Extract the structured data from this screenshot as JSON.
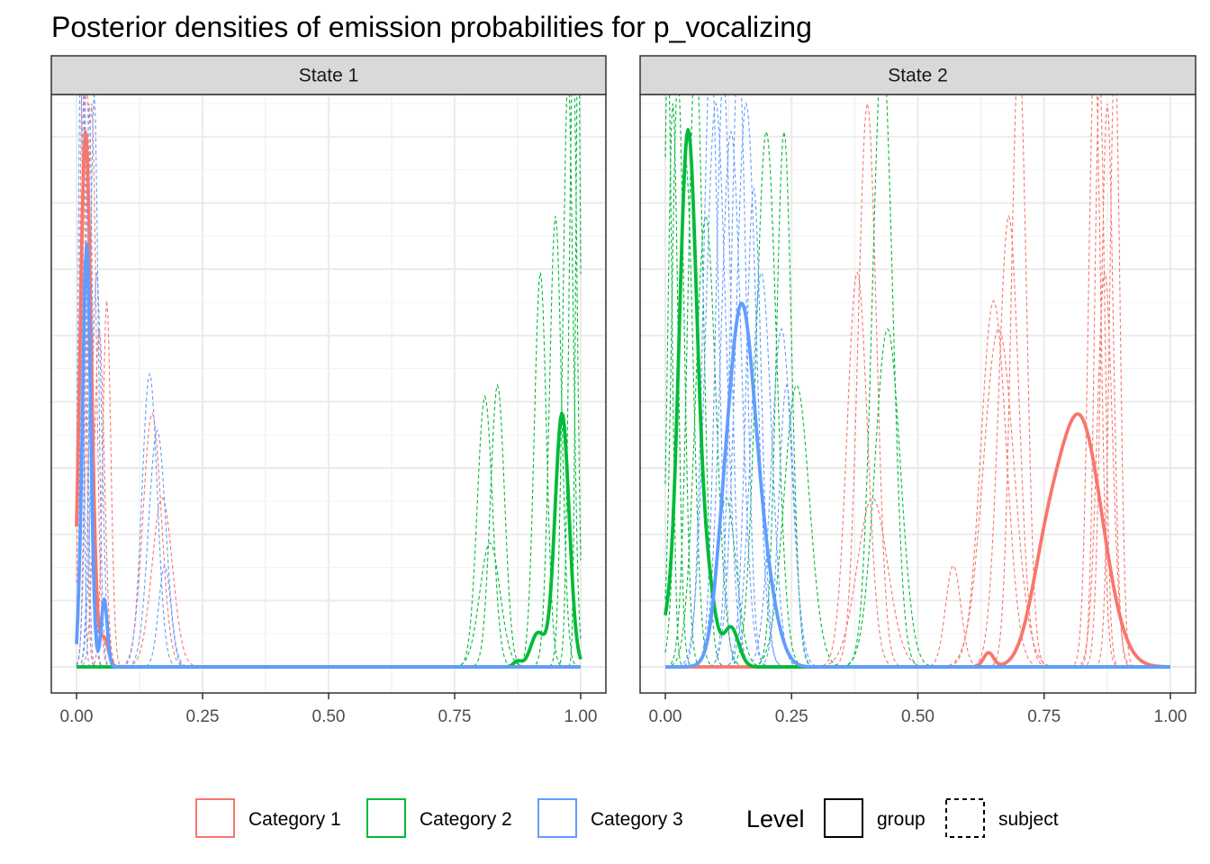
{
  "chart_data": {
    "type": "line",
    "title": "Posterior densities of emission probabilities for p_vocalizing",
    "xlabel": "",
    "ylabel": "",
    "x_ticks": [
      "0.00",
      "0.25",
      "0.50",
      "0.75",
      "1.00"
    ],
    "xlim": [
      0,
      1
    ],
    "grid": true,
    "legend_position": "bottom",
    "legend": {
      "categories": [
        {
          "label": "Category 1",
          "color": "#F8766D"
        },
        {
          "label": "Category 2",
          "color": "#00BA38"
        },
        {
          "label": "Category 3",
          "color": "#619CFF"
        }
      ],
      "level_title": "Level",
      "levels": [
        {
          "label": "group",
          "linetype": "solid"
        },
        {
          "label": "subject",
          "linetype": "dashed"
        }
      ]
    },
    "panels": [
      {
        "strip": "State 1",
        "ylim": [
          0,
          1
        ],
        "group_curves": [
          {
            "category": "Category 1",
            "color": "#F8766D",
            "peaks": [
              {
                "mu": 0.018,
                "sd": 0.011,
                "h": 0.95
              }
            ],
            "tail": [
              {
                "mu": 0.055,
                "sd": 0.008,
                "h": 0.05
              }
            ]
          },
          {
            "category": "Category 2",
            "color": "#00BA38",
            "peaks": [
              {
                "mu": 0.963,
                "sd": 0.014,
                "h": 0.45
              }
            ],
            "tail": [
              {
                "mu": 0.915,
                "sd": 0.014,
                "h": 0.06
              },
              {
                "mu": 0.875,
                "sd": 0.008,
                "h": 0.01
              }
            ]
          },
          {
            "category": "Category 3",
            "color": "#619CFF",
            "peaks": [
              {
                "mu": 0.02,
                "sd": 0.008,
                "h": 0.75
              }
            ],
            "tail": [
              {
                "mu": 0.055,
                "sd": 0.006,
                "h": 0.12
              },
              {
                "mu": 0.005,
                "sd": 0.003,
                "h": 0.03
              }
            ]
          }
        ],
        "subject_curves": [
          {
            "category": "Category 1",
            "color": "#F8766D",
            "peaks": [
              [
                0.012,
                0.006,
                1.1
              ],
              [
                0.02,
                0.008,
                1.05
              ],
              [
                0.03,
                0.009,
                1.0
              ],
              [
                0.045,
                0.01,
                0.6
              ],
              [
                0.06,
                0.008,
                0.65
              ],
              [
                0.15,
                0.018,
                0.45
              ],
              [
                0.17,
                0.02,
                0.3
              ]
            ]
          },
          {
            "category": "Category 2",
            "color": "#00BA38",
            "peaks": [
              [
                0.81,
                0.015,
                0.48
              ],
              [
                0.835,
                0.014,
                0.5
              ],
              [
                0.82,
                0.02,
                0.22
              ],
              [
                0.92,
                0.012,
                0.7
              ],
              [
                0.95,
                0.012,
                0.8
              ],
              [
                0.975,
                0.01,
                1.05
              ],
              [
                0.985,
                0.008,
                1.1
              ],
              [
                0.995,
                0.005,
                1.15
              ]
            ]
          },
          {
            "category": "Category 3",
            "color": "#619CFF",
            "peaks": [
              [
                0.008,
                0.005,
                1.1
              ],
              [
                0.015,
                0.006,
                1.05
              ],
              [
                0.025,
                0.007,
                1.0
              ],
              [
                0.035,
                0.008,
                1.02
              ],
              [
                0.04,
                0.01,
                0.7
              ],
              [
                0.145,
                0.015,
                0.52
              ],
              [
                0.16,
                0.017,
                0.42
              ],
              [
                0.175,
                0.012,
                0.18
              ]
            ]
          }
        ]
      },
      {
        "strip": "State 2",
        "ylim": [
          0,
          1
        ],
        "group_curves": [
          {
            "category": "Category 1",
            "color": "#F8766D",
            "peaks": [
              {
                "mu": 0.82,
                "sd": 0.045,
                "h": 0.44
              }
            ],
            "tail": [
              {
                "mu": 0.75,
                "sd": 0.03,
                "h": 0.12
              },
              {
                "mu": 0.64,
                "sd": 0.01,
                "h": 0.025
              }
            ]
          },
          {
            "category": "Category 2",
            "color": "#00BA38",
            "peaks": [
              {
                "mu": 0.045,
                "sd": 0.018,
                "h": 0.95
              }
            ],
            "tail": [
              {
                "mu": 0.085,
                "sd": 0.015,
                "h": 0.12
              },
              {
                "mu": 0.13,
                "sd": 0.015,
                "h": 0.07
              },
              {
                "mu": 0.0,
                "sd": 0.01,
                "h": 0.05
              }
            ]
          },
          {
            "category": "Category 3",
            "color": "#619CFF",
            "peaks": [
              {
                "mu": 0.15,
                "sd": 0.028,
                "h": 0.63
              }
            ],
            "tail": [
              {
                "mu": 0.2,
                "sd": 0.025,
                "h": 0.1
              },
              {
                "mu": 0.11,
                "sd": 0.015,
                "h": 0.05
              }
            ]
          }
        ],
        "subject_curves": [
          {
            "category": "Category 1",
            "color": "#F8766D",
            "peaks": [
              [
                0.4,
                0.018,
                1.0
              ],
              [
                0.38,
                0.02,
                0.7
              ],
              [
                0.41,
                0.03,
                0.3
              ],
              [
                0.57,
                0.015,
                0.18
              ],
              [
                0.65,
                0.025,
                0.65
              ],
              [
                0.68,
                0.02,
                0.8
              ],
              [
                0.7,
                0.015,
                1.1
              ],
              [
                0.66,
                0.03,
                0.6
              ],
              [
                0.85,
                0.012,
                1.1
              ],
              [
                0.86,
                0.01,
                1.05
              ],
              [
                0.875,
                0.012,
                1.0
              ],
              [
                0.89,
                0.01,
                1.1
              ],
              [
                0.87,
                0.015,
                0.7
              ]
            ]
          },
          {
            "category": "Category 2",
            "color": "#00BA38",
            "peaks": [
              [
                0.005,
                0.008,
                1.1
              ],
              [
                0.015,
                0.01,
                1.0
              ],
              [
                0.025,
                0.012,
                1.05
              ],
              [
                0.04,
                0.015,
                0.9
              ],
              [
                0.06,
                0.015,
                1.1
              ],
              [
                0.08,
                0.02,
                0.8
              ],
              [
                0.2,
                0.02,
                0.95
              ],
              [
                0.235,
                0.015,
                0.95
              ],
              [
                0.26,
                0.025,
                0.5
              ],
              [
                0.43,
                0.02,
                1.1
              ],
              [
                0.44,
                0.025,
                0.6
              ],
              [
                0.12,
                0.02,
                0.3
              ]
            ]
          },
          {
            "category": "Category 3",
            "color": "#619CFF",
            "peaks": [
              [
                0.09,
                0.015,
                1.1
              ],
              [
                0.1,
                0.02,
                1.0
              ],
              [
                0.115,
                0.015,
                1.05
              ],
              [
                0.13,
                0.02,
                0.95
              ],
              [
                0.145,
                0.015,
                1.1
              ],
              [
                0.16,
                0.02,
                1.0
              ],
              [
                0.175,
                0.015,
                0.85
              ],
              [
                0.19,
                0.02,
                0.7
              ],
              [
                0.23,
                0.02,
                0.6
              ],
              [
                0.24,
                0.015,
                0.5
              ]
            ]
          }
        ]
      }
    ]
  }
}
